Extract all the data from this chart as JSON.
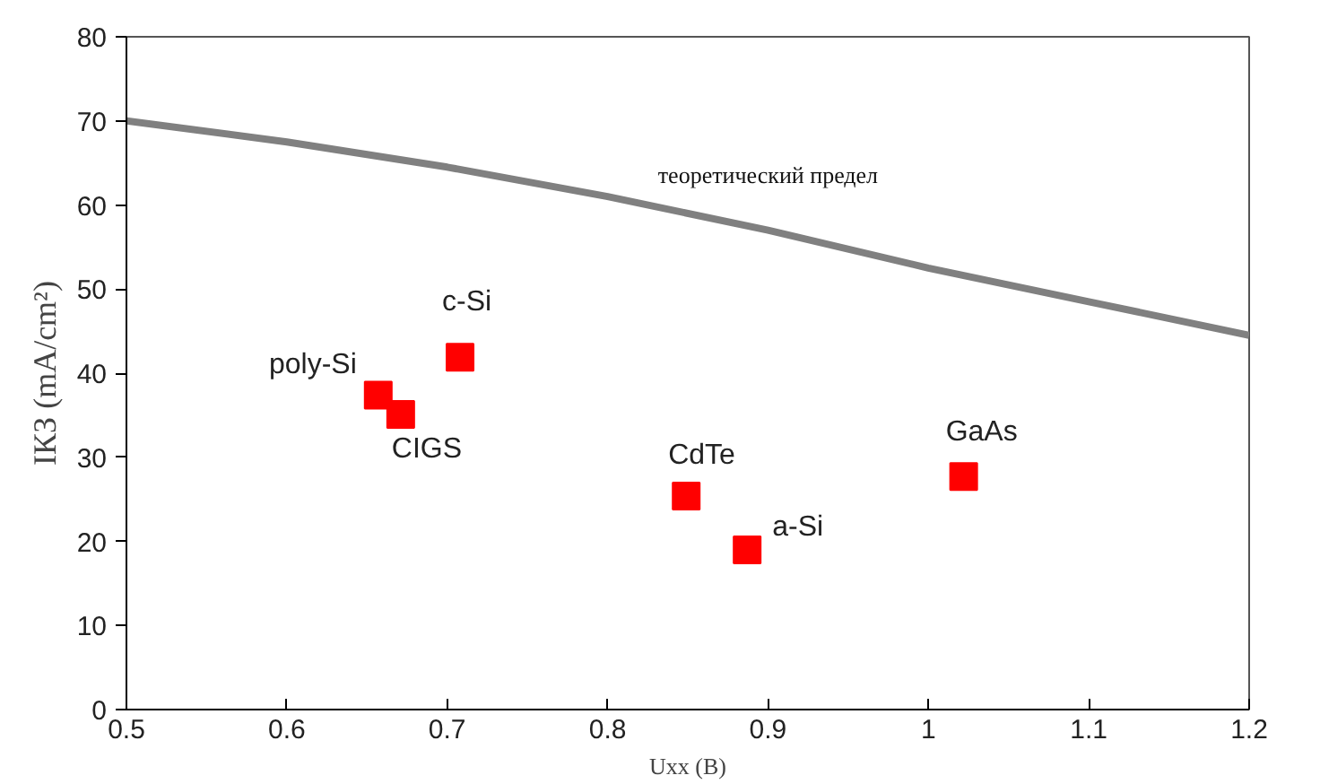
{
  "chart_data": {
    "type": "scatter",
    "xlabel": "Uxx (B)",
    "ylabel": "IКЗ (mA/cm²)",
    "xlim": [
      0.5,
      1.2
    ],
    "xticks": [
      0.5,
      0.6,
      0.7,
      0.8,
      0.9,
      {
        "value": 1.0,
        "label": "1"
      },
      1.1,
      1.2
    ],
    "ylim": [
      0,
      80
    ],
    "yticks": [
      0,
      10,
      20,
      30,
      40,
      50,
      60,
      70,
      80
    ],
    "grid": false,
    "marker": "square",
    "series": [
      {
        "name": "теоретический предел",
        "type": "line",
        "marker": "none",
        "color": "#808080",
        "x": [
          0.5,
          0.6,
          0.7,
          0.8,
          0.9,
          1.0,
          1.1,
          1.2
        ],
        "values": [
          70,
          67.5,
          64.5,
          61,
          57,
          52.5,
          48.5,
          44.5
        ]
      },
      {
        "name": "poly-Si",
        "color": "#ff0000",
        "x": [
          0.657
        ],
        "values": [
          37.4
        ]
      },
      {
        "name": "CIGS",
        "color": "#ff0000",
        "x": [
          0.671
        ],
        "values": [
          35.1
        ]
      },
      {
        "name": "c-Si",
        "color": "#ff0000",
        "x": [
          0.708
        ],
        "values": [
          41.9
        ]
      },
      {
        "name": "CdTe",
        "color": "#ff0000",
        "x": [
          0.849
        ],
        "values": [
          25.4
        ]
      },
      {
        "name": "a-Si",
        "color": "#ff0000",
        "x": [
          0.887
        ],
        "values": [
          19.0
        ]
      },
      {
        "name": "GaAs",
        "color": "#ff0000",
        "x": [
          1.022
        ],
        "values": [
          27.7
        ]
      }
    ]
  }
}
